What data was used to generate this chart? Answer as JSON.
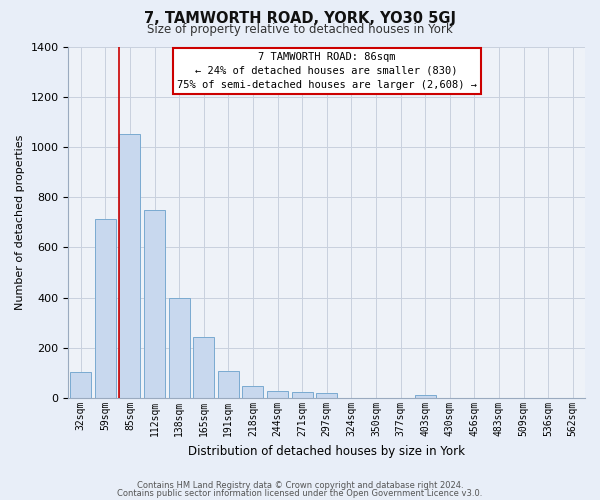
{
  "title": "7, TAMWORTH ROAD, YORK, YO30 5GJ",
  "subtitle": "Size of property relative to detached houses in York",
  "xlabel": "Distribution of detached houses by size in York",
  "ylabel": "Number of detached properties",
  "bar_color": "#c8d8ee",
  "bar_edge_color": "#7aaad0",
  "categories": [
    "32sqm",
    "59sqm",
    "85sqm",
    "112sqm",
    "138sqm",
    "165sqm",
    "191sqm",
    "218sqm",
    "244sqm",
    "271sqm",
    "297sqm",
    "324sqm",
    "350sqm",
    "377sqm",
    "403sqm",
    "430sqm",
    "456sqm",
    "483sqm",
    "509sqm",
    "536sqm",
    "562sqm"
  ],
  "values": [
    105,
    715,
    1050,
    750,
    400,
    245,
    110,
    50,
    27,
    23,
    20,
    0,
    0,
    0,
    12,
    0,
    0,
    0,
    0,
    0,
    0
  ],
  "ylim": [
    0,
    1400
  ],
  "yticks": [
    0,
    200,
    400,
    600,
    800,
    1000,
    1200,
    1400
  ],
  "annotation_text_line1": "7 TAMWORTH ROAD: 86sqm",
  "annotation_text_line2": "← 24% of detached houses are smaller (830)",
  "annotation_text_line3": "75% of semi-detached houses are larger (2,608) →",
  "vline_x_index": 2,
  "vline_color": "#cc0000",
  "footer_line1": "Contains HM Land Registry data © Crown copyright and database right 2024.",
  "footer_line2": "Contains public sector information licensed under the Open Government Licence v3.0.",
  "bg_color": "#e8eef8",
  "plot_bg_color": "#eef2f8",
  "grid_color": "#c8d0de"
}
